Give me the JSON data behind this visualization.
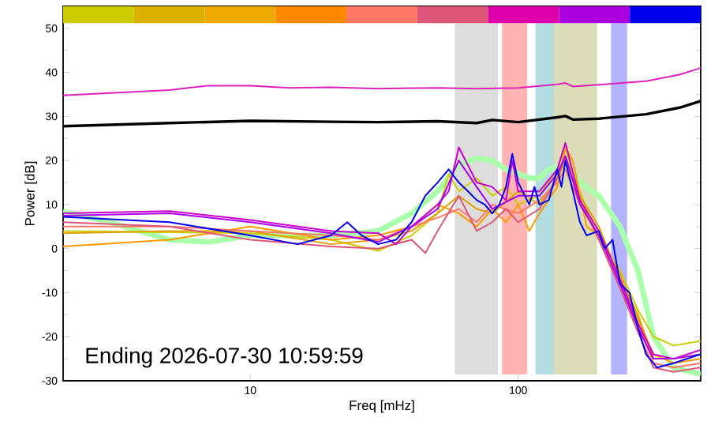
{
  "chart_data": {
    "type": "line",
    "xlabel": "Freq [mHz]",
    "ylabel": "Power [dB]",
    "log": "x",
    "xlim": [
      2,
      480
    ],
    "ylim": [
      -30,
      55
    ],
    "xticks": [
      10,
      100
    ],
    "yticks": [
      -30,
      -20,
      -10,
      0,
      10,
      20,
      30,
      40,
      50
    ],
    "grid": false,
    "marker": "none",
    "line_style": "solid",
    "annotations": [
      "Ending 2026-07-30 10:59:59"
    ],
    "bands": [
      {
        "axis": "x",
        "from": 58,
        "to": 84,
        "color": "#dddddd"
      },
      {
        "axis": "x",
        "from": 87,
        "to": 108,
        "color": "#ffb3b3"
      },
      {
        "axis": "x",
        "from": 116,
        "to": 136,
        "color": "#b3dde0"
      },
      {
        "axis": "x",
        "from": 136,
        "to": 197,
        "color": "#dcdcb8"
      },
      {
        "axis": "x",
        "from": 222,
        "to": 255,
        "color": "#b3b3ff"
      }
    ],
    "series": [
      {
        "color": "#aaffaa",
        "x": [
          2,
          3,
          5,
          7,
          10,
          20,
          30,
          40,
          50,
          60,
          70,
          80,
          90,
          100,
          110,
          120,
          130,
          150,
          170,
          200,
          240,
          280,
          320,
          380,
          480
        ],
        "values": [
          8.5,
          6,
          2,
          1.5,
          3,
          3,
          4,
          8,
          13,
          19,
          20.5,
          20,
          18,
          17,
          16,
          16,
          18,
          19,
          15,
          12,
          5,
          -5,
          -20,
          -27,
          -28.5
        ]
      },
      {
        "color": "#dd22bb",
        "x": [
          2,
          5,
          7,
          10,
          14,
          20,
          30,
          50,
          70,
          100,
          140,
          150,
          160,
          200,
          300,
          400,
          480
        ],
        "values": [
          34.8,
          36,
          37,
          37,
          36.5,
          36.6,
          36.3,
          36.5,
          36.3,
          36.5,
          37.3,
          37.6,
          36.8,
          37.2,
          38,
          39.5,
          41
        ]
      },
      {
        "color": "#000000",
        "x": [
          2,
          5,
          10,
          20,
          30,
          50,
          70,
          80,
          100,
          140,
          150,
          160,
          200,
          300,
          400,
          480
        ],
        "values": [
          27.8,
          28.5,
          29,
          28.8,
          28.7,
          28.9,
          28.5,
          29.2,
          28.7,
          29.8,
          30.1,
          29.3,
          29.5,
          30.5,
          32,
          33.5
        ]
      },
      {
        "color": "#cccc00",
        "x": [
          2,
          10,
          20,
          30,
          40,
          50,
          55,
          60,
          70,
          80,
          90,
          100,
          120,
          140,
          150,
          160,
          180,
          200,
          240,
          280,
          320,
          380,
          480
        ],
        "values": [
          4,
          3.5,
          2,
          -0.5,
          3,
          8,
          17,
          13,
          16,
          12,
          14,
          10,
          12,
          18,
          23,
          17,
          9,
          2,
          -5,
          -14,
          -20,
          -22,
          -21
        ]
      },
      {
        "color": "#ff9900",
        "x": [
          2,
          5,
          10,
          20,
          30,
          40,
          50,
          60,
          70,
          80,
          90,
          100,
          110,
          120,
          140,
          150,
          160,
          180,
          200,
          240,
          280,
          320,
          380,
          480
        ],
        "values": [
          0.5,
          2,
          5,
          2,
          3,
          5,
          10,
          8,
          5,
          9,
          6,
          10,
          4,
          8,
          14,
          23,
          20,
          5,
          3,
          -6,
          -16,
          -24,
          -26,
          -25
        ]
      },
      {
        "color": "#e0a000",
        "x": [
          2,
          5,
          10,
          20,
          30,
          40,
          50,
          60,
          70,
          80,
          100,
          120,
          140,
          150,
          170,
          200,
          240,
          280,
          320,
          380,
          480
        ],
        "values": [
          3.5,
          4,
          4,
          1,
          2,
          4,
          8,
          12,
          9,
          8,
          13,
          10,
          16,
          20,
          12,
          5,
          -7,
          -15,
          -25,
          -25,
          -24
        ]
      },
      {
        "color": "#ff7766",
        "x": [
          2,
          5,
          10,
          20,
          30,
          40,
          50,
          60,
          70,
          80,
          100,
          120,
          140,
          150,
          170,
          200,
          240,
          280,
          320,
          380,
          480
        ],
        "values": [
          5,
          5,
          4,
          3,
          2,
          5,
          7,
          9,
          6,
          10,
          8,
          11,
          15,
          18,
          10,
          3,
          -8,
          -17,
          -26,
          -27,
          -26
        ]
      },
      {
        "color": "#dd5577",
        "x": [
          2,
          5,
          10,
          20,
          30,
          40,
          45,
          50,
          60,
          70,
          80,
          90,
          100,
          120,
          140,
          150,
          170,
          200,
          240,
          280,
          320,
          380,
          480
        ],
        "values": [
          6,
          5,
          2,
          0.5,
          0,
          2,
          -1,
          4,
          12,
          4,
          6,
          9,
          6,
          9,
          16,
          21,
          11,
          2,
          -9,
          -19,
          -27,
          -28,
          -27
        ]
      },
      {
        "color": "#cc00cc",
        "x": [
          2,
          5,
          10,
          20,
          30,
          35,
          40,
          50,
          55,
          60,
          70,
          80,
          90,
          95,
          100,
          120,
          140,
          150,
          170,
          200,
          240,
          280,
          320,
          380,
          480
        ],
        "values": [
          8,
          8.5,
          6.5,
          4,
          3.5,
          1,
          5,
          10,
          13,
          23,
          15,
          14,
          11,
          20,
          13,
          13,
          18,
          24,
          11,
          4,
          -7,
          -17,
          -24,
          -25,
          -23
        ]
      },
      {
        "color": "#aa00ee",
        "x": [
          2,
          5,
          10,
          20,
          30,
          40,
          50,
          60,
          70,
          80,
          100,
          120,
          140,
          150,
          170,
          200,
          240,
          280,
          320,
          380,
          480
        ],
        "values": [
          7.5,
          8,
          6,
          3.5,
          1.5,
          5,
          9,
          20,
          14,
          9,
          12,
          12,
          17,
          21,
          10,
          3,
          -8,
          -18,
          -25,
          -25,
          -24
        ]
      },
      {
        "color": "#0000ee",
        "x": [
          2,
          5,
          10,
          15,
          20,
          23,
          26,
          30,
          35,
          40,
          45,
          50,
          55,
          60,
          65,
          70,
          75,
          80,
          85,
          90,
          95,
          100,
          110,
          115,
          120,
          130,
          140,
          145,
          150,
          160,
          170,
          180,
          200,
          210,
          225,
          240,
          260,
          280,
          300,
          330,
          380,
          480
        ],
        "values": [
          7.2,
          6,
          3,
          1,
          3,
          6,
          3,
          1,
          2,
          6,
          12,
          15,
          18,
          15,
          13,
          11,
          10,
          8,
          10,
          14,
          21.5,
          15,
          10,
          14,
          10,
          11,
          18,
          14,
          20,
          13,
          6,
          3,
          4,
          0,
          2,
          -8,
          -10,
          -18,
          -24,
          -27,
          -26,
          -24
        ]
      }
    ]
  }
}
